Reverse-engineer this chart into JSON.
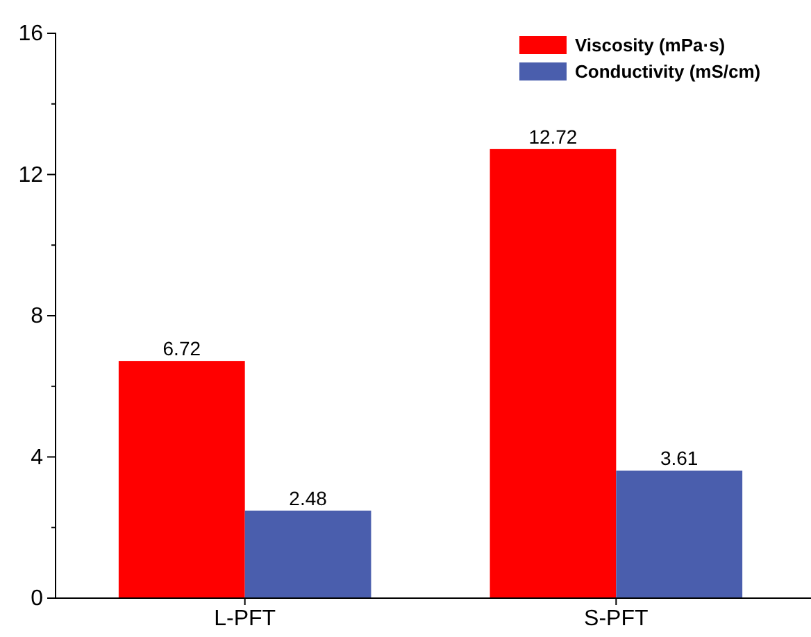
{
  "chart_data": {
    "type": "bar",
    "categories": [
      "L-PFT",
      "S-PFT"
    ],
    "series": [
      {
        "name": "Viscosity (mPa·s)",
        "color": "#ff0000",
        "values": [
          6.72,
          12.72
        ]
      },
      {
        "name": "Conductivity (mS/cm)",
        "color": "#4a5ead",
        "values": [
          2.48,
          3.61
        ]
      }
    ],
    "ylim": [
      0,
      16
    ],
    "yticks": [
      0,
      4,
      8,
      12,
      16
    ],
    "data_labels": true,
    "legend": "top right"
  }
}
